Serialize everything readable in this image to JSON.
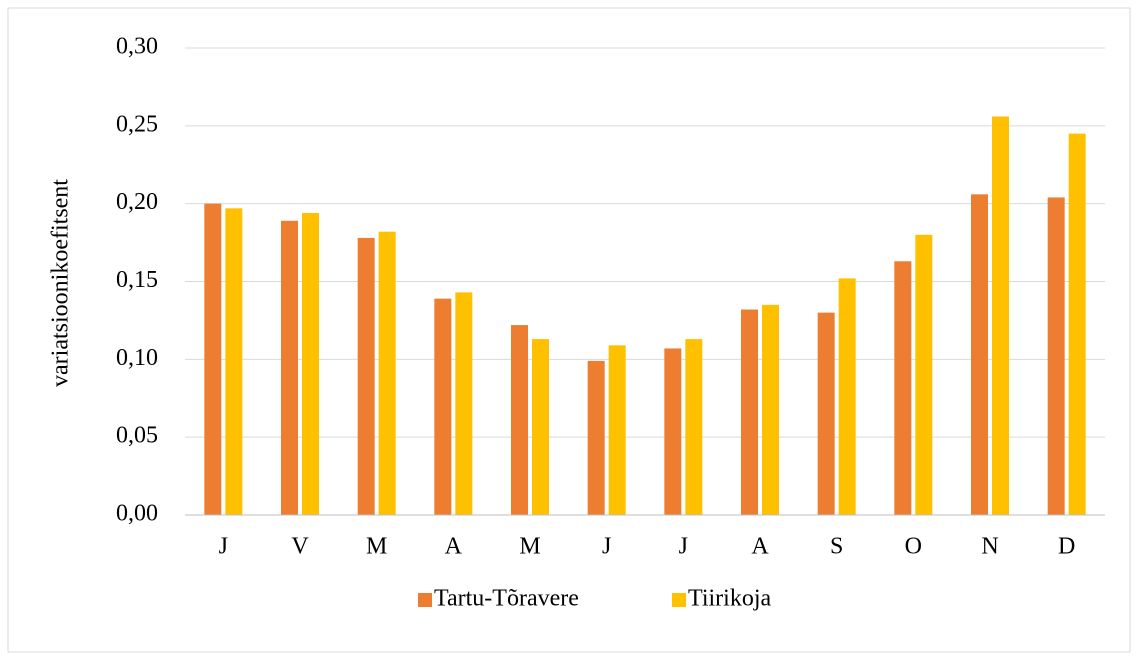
{
  "chart_data": {
    "type": "bar",
    "y_label": "variatsioonikoefitsent",
    "categories": [
      "J",
      "V",
      "M",
      "A",
      "M",
      "J",
      "J",
      "A",
      "S",
      "O",
      "N",
      "D"
    ],
    "series": [
      {
        "name": "Tartu-Tõravere",
        "color": "#ed7d31",
        "values": [
          0.2,
          0.189,
          0.178,
          0.139,
          0.122,
          0.099,
          0.107,
          0.132,
          0.13,
          0.163,
          0.206,
          0.204
        ]
      },
      {
        "name": "Tiirikoja",
        "color": "#ffc000",
        "values": [
          0.197,
          0.194,
          0.182,
          0.143,
          0.113,
          0.109,
          0.113,
          0.135,
          0.152,
          0.18,
          0.256,
          0.245
        ]
      }
    ],
    "ylim": [
      0,
      0.3
    ],
    "yticks": [
      {
        "value": 0,
        "label": "0,00"
      },
      {
        "value": 0.05,
        "label": "0,05"
      },
      {
        "value": 0.1,
        "label": "0,10"
      },
      {
        "value": 0.15,
        "label": "0,15"
      },
      {
        "value": 0.2,
        "label": "0,20"
      },
      {
        "value": 0.25,
        "label": "0,25"
      },
      {
        "value": 0.3,
        "label": "0,30"
      }
    ],
    "grid": true,
    "legend": "bottom"
  }
}
